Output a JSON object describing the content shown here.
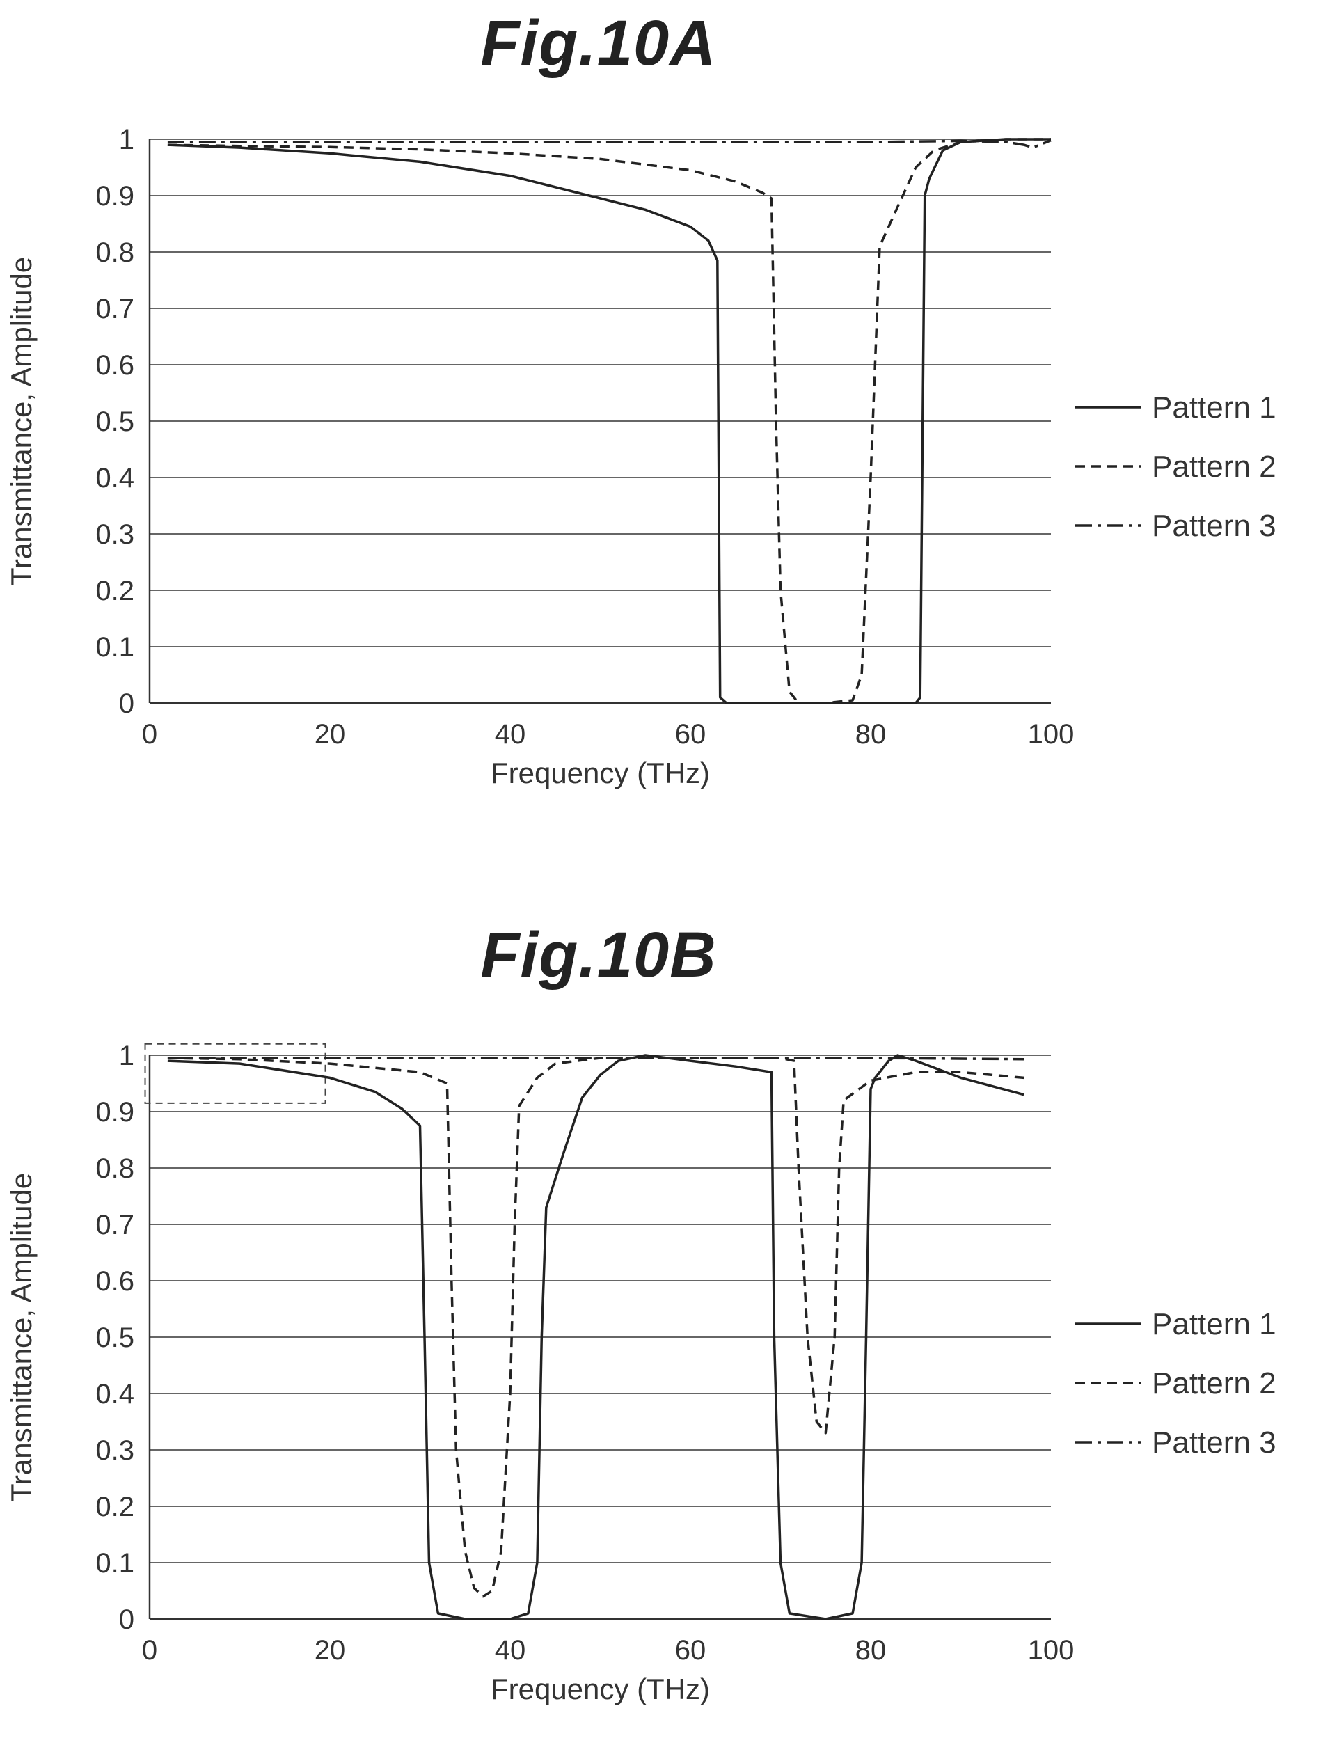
{
  "charts": [
    {
      "figure_title": "Fig.10A",
      "ylabel": "Transmittance, Amplitude",
      "xlabel": "Frequency (THz)",
      "xticks": [
        "0",
        "20",
        "40",
        "60",
        "80",
        "100"
      ],
      "yticks": [
        "0",
        "0.1",
        "0.2",
        "0.3",
        "0.4",
        "0.5",
        "0.6",
        "0.7",
        "0.8",
        "0.9",
        "1"
      ],
      "legend": [
        "Pattern 1",
        "Pattern 2",
        "Pattern 3"
      ]
    },
    {
      "figure_title": "Fig.10B",
      "ylabel": "Transmittance, Amplitude",
      "xlabel": "Frequency (THz)",
      "xticks": [
        "0",
        "20",
        "40",
        "60",
        "80",
        "100"
      ],
      "yticks": [
        "0",
        "0.1",
        "0.2",
        "0.3",
        "0.4",
        "0.5",
        "0.6",
        "0.7",
        "0.8",
        "0.9",
        "1"
      ],
      "legend": [
        "Pattern 1",
        "Pattern 2",
        "Pattern 3"
      ]
    }
  ],
  "chart_data": [
    {
      "type": "line",
      "title": "Fig.10A",
      "xlabel": "Frequency (THz)",
      "ylabel": "Transmittance, Amplitude",
      "xlim": [
        0,
        100
      ],
      "ylim": [
        0,
        1
      ],
      "grid": "horizontal",
      "legend_position": "right",
      "series": [
        {
          "name": "Pattern 1",
          "line_style": "solid",
          "x": [
            2,
            10,
            20,
            30,
            40,
            50,
            55,
            60,
            62,
            63,
            63.3,
            64,
            70,
            80,
            85,
            85.5,
            86,
            86.5,
            88,
            90,
            95,
            100
          ],
          "y": [
            0.99,
            0.985,
            0.975,
            0.96,
            0.935,
            0.895,
            0.875,
            0.845,
            0.82,
            0.785,
            0.01,
            0.0,
            0.0,
            0.0,
            0.0,
            0.01,
            0.9,
            0.93,
            0.98,
            0.995,
            1.0,
            1.0
          ]
        },
        {
          "name": "Pattern 2",
          "line_style": "dashed",
          "x": [
            2,
            10,
            20,
            30,
            40,
            50,
            60,
            65,
            68,
            69,
            69.5,
            70,
            71,
            72,
            75,
            78,
            79,
            80,
            81,
            83,
            85,
            87,
            90,
            95,
            100
          ],
          "y": [
            0.99,
            0.988,
            0.986,
            0.982,
            0.975,
            0.965,
            0.945,
            0.925,
            0.905,
            0.895,
            0.5,
            0.2,
            0.02,
            0.0,
            0.0,
            0.005,
            0.05,
            0.4,
            0.81,
            0.88,
            0.95,
            0.98,
            0.995,
            1.0,
            1.0
          ]
        },
        {
          "name": "Pattern 3",
          "line_style": "dash-dot",
          "x": [
            2,
            20,
            40,
            60,
            80,
            90,
            95,
            97,
            98,
            100
          ],
          "y": [
            0.995,
            0.995,
            0.995,
            0.995,
            0.995,
            0.997,
            0.995,
            0.99,
            0.985,
            0.998
          ]
        }
      ]
    },
    {
      "type": "line",
      "title": "Fig.10B",
      "xlabel": "Frequency (THz)",
      "ylabel": "Transmittance, Amplitude",
      "xlim": [
        0,
        100
      ],
      "ylim": [
        0,
        1
      ],
      "grid": "horizontal",
      "legend_position": "right",
      "series": [
        {
          "name": "Pattern 1",
          "line_style": "solid",
          "x": [
            2,
            10,
            20,
            25,
            28,
            30,
            30.5,
            31,
            32,
            35,
            40,
            42,
            43,
            43.5,
            44,
            46,
            48,
            50,
            52,
            55,
            60,
            65,
            69,
            69.3,
            70,
            71,
            75,
            78,
            79,
            79.5,
            80,
            80.5,
            82,
            83,
            85,
            90,
            97
          ],
          "y": [
            0.99,
            0.985,
            0.96,
            0.935,
            0.905,
            0.875,
            0.5,
            0.1,
            0.01,
            0.0,
            0.0,
            0.01,
            0.1,
            0.5,
            0.73,
            0.83,
            0.925,
            0.965,
            0.99,
            1.0,
            0.99,
            0.98,
            0.97,
            0.5,
            0.1,
            0.01,
            0.0,
            0.01,
            0.1,
            0.5,
            0.94,
            0.96,
            0.99,
            1.0,
            0.99,
            0.96,
            0.93
          ]
        },
        {
          "name": "Pattern 2",
          "line_style": "dashed",
          "x": [
            2,
            10,
            20,
            30,
            33,
            33.5,
            34,
            35,
            36,
            37,
            38,
            39,
            40,
            40.5,
            41,
            43,
            45,
            50,
            60,
            70,
            71.5,
            72,
            73,
            74,
            75,
            76,
            76.5,
            77,
            80,
            85,
            90,
            97
          ],
          "y": [
            0.995,
            0.993,
            0.985,
            0.97,
            0.95,
            0.6,
            0.3,
            0.12,
            0.055,
            0.04,
            0.05,
            0.12,
            0.4,
            0.7,
            0.91,
            0.96,
            0.985,
            0.995,
            0.995,
            0.995,
            0.99,
            0.8,
            0.5,
            0.35,
            0.33,
            0.5,
            0.8,
            0.92,
            0.955,
            0.97,
            0.97,
            0.96
          ]
        },
        {
          "name": "Pattern 3",
          "line_style": "dash-dot",
          "x": [
            2,
            20,
            40,
            60,
            80,
            97
          ],
          "y": [
            0.995,
            0.995,
            0.995,
            0.995,
            0.995,
            0.993
          ]
        }
      ]
    }
  ]
}
